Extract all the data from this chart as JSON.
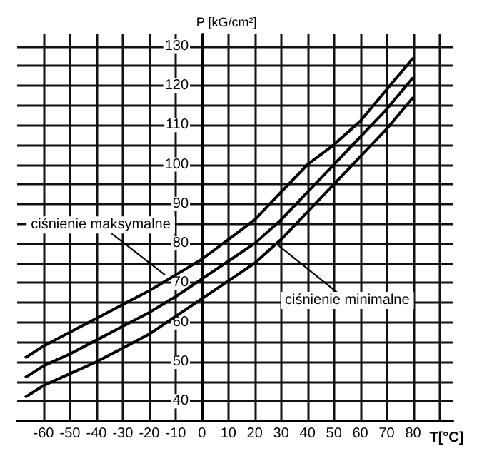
{
  "chart_data": {
    "type": "line",
    "xlabel": "T[°C]",
    "ylabel": "P [kG/cm²]",
    "x": [
      -67,
      -60,
      -50,
      -40,
      -30,
      -20,
      -10,
      0,
      10,
      20,
      30,
      40,
      50,
      60,
      70,
      80
    ],
    "series": [
      {
        "color": "#000000",
        "values": [
          51,
          54,
          57.5,
          61,
          64.5,
          68,
          72,
          76,
          81,
          86,
          93,
          100,
          105,
          111,
          119,
          127
        ]
      },
      {
        "color": "#000000",
        "values": [
          46,
          49,
          52,
          55.5,
          59,
          62.5,
          66.5,
          71,
          75.5,
          80,
          86,
          93,
          100,
          107,
          114,
          122
        ]
      },
      {
        "color": "#000000",
        "values": [
          41,
          44,
          47,
          50,
          53.5,
          57,
          61.5,
          66,
          70.5,
          75,
          81,
          88,
          95,
          102,
          109,
          117
        ]
      }
    ],
    "xlim": [
      -70,
      95
    ],
    "ylim": [
      35,
      133
    ],
    "xticks": [
      -60,
      -50,
      -40,
      -30,
      -20,
      -10,
      0,
      10,
      20,
      30,
      40,
      50,
      60,
      70,
      80,
      {
        "value": 90,
        "label": null
      }
    ],
    "yticks": [
      {
        "value": 35,
        "label": null
      },
      40,
      {
        "value": 45,
        "label": null
      },
      50,
      {
        "value": 55,
        "label": null
      },
      60,
      {
        "value": 65,
        "label": null
      },
      70,
      {
        "value": 75,
        "label": null
      },
      80,
      {
        "value": 85,
        "label": null
      },
      90,
      {
        "value": 95,
        "label": null
      },
      100,
      {
        "value": 105,
        "label": null
      },
      110,
      {
        "value": 115,
        "label": null
      },
      120,
      {
        "value": 125,
        "label": null
      },
      130
    ],
    "grid": true,
    "marker": "none",
    "line_style": "solid",
    "annotations": [
      {
        "text": "ciśnienie maksymalne",
        "x": -14,
        "y": 72
      },
      {
        "text": "ciśnienie minimalne",
        "x": 28,
        "y": 80
      }
    ]
  }
}
